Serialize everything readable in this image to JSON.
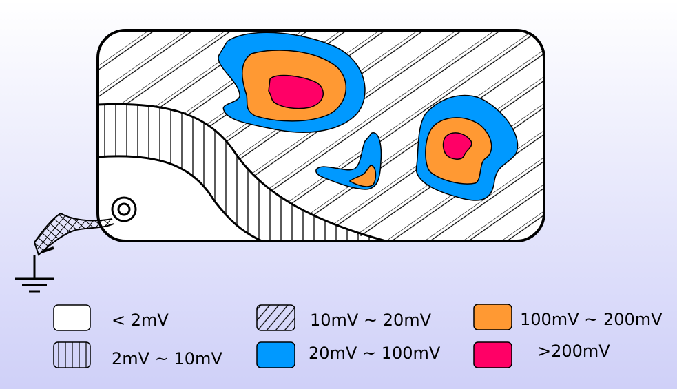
{
  "legend": {
    "items": [
      {
        "label": "< 2mV"
      },
      {
        "label": "2mV ~ 10mV"
      },
      {
        "label": "10mV ~ 20mV"
      },
      {
        "label": "20mV ~ 100mV"
      },
      {
        "label": "100mV ~ 200mV"
      },
      {
        "label": ">200mV"
      }
    ]
  }
}
